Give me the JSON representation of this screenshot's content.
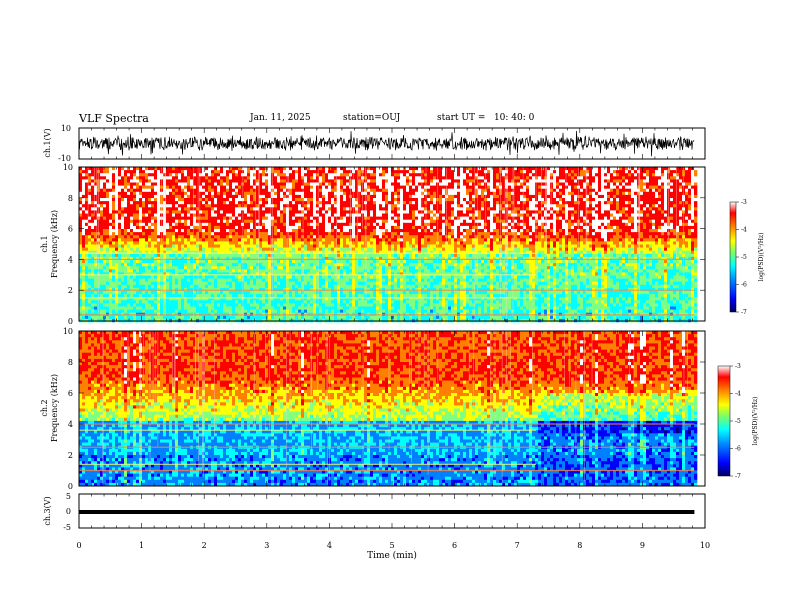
{
  "header": {
    "title": "VLF Spectra",
    "date": "Jan. 11, 2025",
    "station": "station=OUJ",
    "start_ut": "start UT =   10: 40: 0"
  },
  "colorbar_colors": [
    "#000080",
    "#0000ff",
    "#0080ff",
    "#00ffff",
    "#80ff80",
    "#ffff00",
    "#ff8000",
    "#ff0000",
    "#ffffff"
  ],
  "chart_data": [
    {
      "type": "line",
      "name": "waveform-ch1",
      "ylabel": "ch.1(V)",
      "ylim": [
        -10,
        10
      ],
      "yticks": [
        "10",
        "-10"
      ],
      "description_mode": "noisy waveform, envelope roughly between -4 V and +4 V"
    },
    {
      "type": "heatmap",
      "name": "spectrogram-ch1",
      "ylabel_top": "ch.1",
      "ylabel": "Frequency (kHz)",
      "ylim": [
        0,
        10
      ],
      "yticks": [
        "0",
        "2",
        "4",
        "6",
        "8",
        "10"
      ],
      "xlim": [
        0,
        10
      ],
      "colorbar": {
        "ticks": [
          "-3",
          "-4",
          "-5",
          "-6",
          "-7"
        ],
        "label": "log(PSD)(V²/Hz)",
        "range": [
          -7,
          -3
        ]
      },
      "bands_khz": [
        0.4,
        1.5,
        2.0,
        3.0,
        4.0,
        4.4
      ]
    },
    {
      "type": "heatmap",
      "name": "spectrogram-ch2",
      "ylabel_top": "ch.2",
      "ylabel": "Frequency (kHz)",
      "ylim": [
        0,
        10
      ],
      "yticks": [
        "0",
        "2",
        "4",
        "6",
        "8",
        "10"
      ],
      "xlim": [
        0,
        10
      ],
      "colorbar": {
        "ticks": [
          "-3",
          "-4",
          "-5",
          "-6",
          "-7"
        ],
        "label": "log(PSD)(V²/Hz)",
        "range": [
          -7,
          -3
        ]
      },
      "bands_khz": [
        1.0,
        1.4,
        2.5,
        3.6,
        4.0
      ]
    },
    {
      "type": "line",
      "name": "waveform-ch3",
      "ylabel": "ch.3(V)",
      "ylim": [
        -5,
        5
      ],
      "yticks": [
        "5",
        "0",
        "-5"
      ],
      "level_v": -0.3,
      "xlabel": "Time (min)",
      "xlim": [
        0,
        10
      ],
      "xticks": [
        "0",
        "1",
        "2",
        "3",
        "4",
        "5",
        "6",
        "7",
        "8",
        "9",
        "10"
      ],
      "data_end_min": 9.83
    }
  ]
}
